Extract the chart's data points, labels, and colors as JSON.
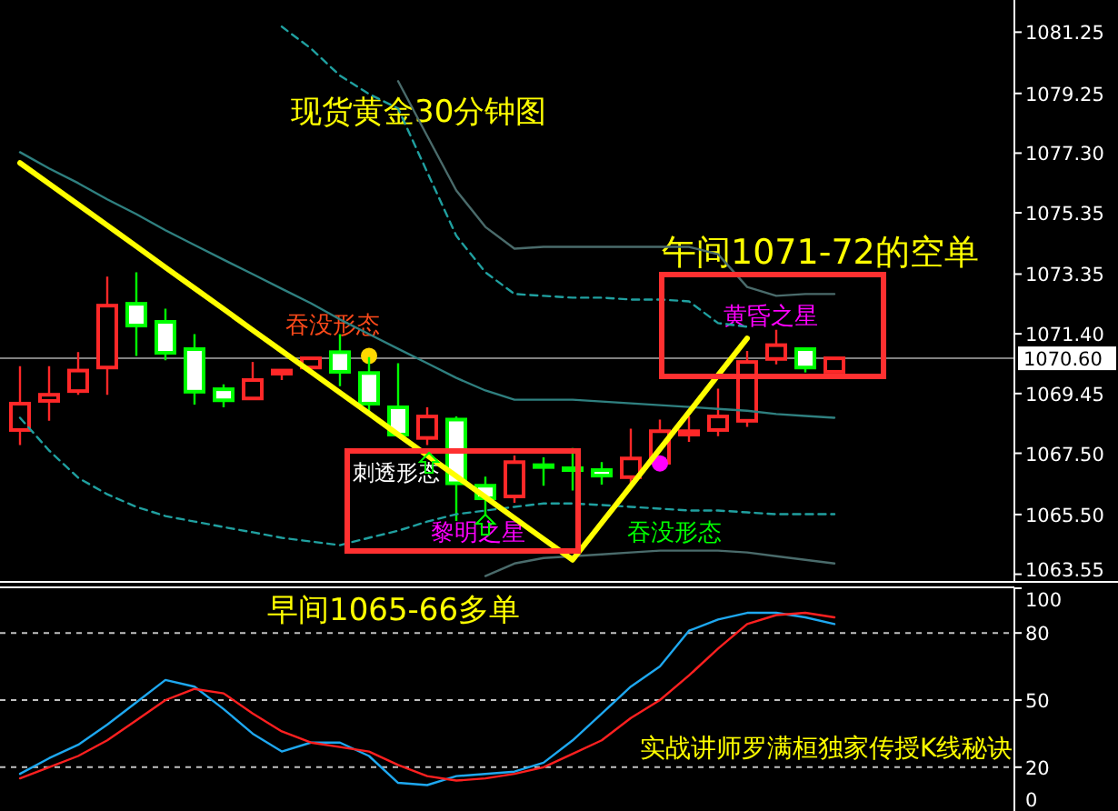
{
  "chart_data": [
    {
      "type": "candlestick",
      "title": "现货黄金30分钟图",
      "categories": [
        null,
        null,
        null,
        null,
        null,
        null,
        null,
        null,
        null,
        null,
        null,
        null,
        null,
        null,
        null,
        null,
        null,
        null,
        null,
        null,
        null,
        null,
        null,
        null,
        null,
        null,
        null,
        null,
        null
      ],
      "ohlc": [
        [
          1068.26,
          1070.34,
          1067.77,
          1069.12
        ],
        [
          1069.21,
          1070.34,
          1068.56,
          1069.41
        ],
        [
          1069.53,
          1070.8,
          1069.41,
          1070.2
        ],
        [
          1070.3,
          1073.27,
          1069.41,
          1072.32
        ],
        [
          1072.38,
          1073.41,
          1070.68,
          1071.67
        ],
        [
          1071.79,
          1072.22,
          1070.54,
          1070.78
        ],
        [
          1070.9,
          1071.39,
          1069.09,
          1069.51
        ],
        [
          1069.59,
          1069.75,
          1069.0,
          1069.23
        ],
        [
          1069.29,
          1070.48,
          1069.29,
          1069.89
        ],
        [
          1070.1,
          1070.2,
          1069.89,
          1070.2
        ],
        [
          1070.3,
          1070.6,
          1070.28,
          1070.6
        ],
        [
          1070.8,
          1071.39,
          1069.69,
          1070.16
        ],
        [
          1070.12,
          1070.64,
          1068.85,
          1069.12
        ],
        [
          1069.0,
          1070.44,
          1068.11,
          1068.11
        ],
        [
          1068.0,
          1069.0,
          1067.77,
          1068.7
        ],
        [
          1068.6,
          1068.7,
          1065.29,
          1066.52
        ],
        [
          1066.44,
          1066.74,
          1065.49,
          1066.03
        ],
        [
          1066.09,
          1067.43,
          1065.88,
          1067.21
        ],
        [
          1067.11,
          1067.37,
          1066.44,
          1067.11
        ],
        [
          1067.01,
          1067.67,
          1066.28,
          1067.01
        ],
        [
          1066.95,
          1067.21,
          1066.48,
          1066.77
        ],
        [
          1066.72,
          1068.3,
          1066.44,
          1067.33
        ],
        [
          1067.19,
          1068.6,
          1067.17,
          1068.22
        ],
        [
          1068.11,
          1068.7,
          1067.87,
          1068.22
        ],
        [
          1068.26,
          1069.61,
          1068.06,
          1068.7
        ],
        [
          1068.56,
          1070.84,
          1068.36,
          1070.48
        ],
        [
          1070.58,
          1071.53,
          1070.4,
          1071.03
        ],
        [
          1070.9,
          1070.93,
          1070.14,
          1070.3
        ],
        [
          1070.16,
          1070.64,
          1070.16,
          1070.6
        ]
      ],
      "colors": [
        "#ff2828",
        "#ff2828",
        "#ff2828",
        "#ff2828",
        "#00ff00",
        "#00ff00",
        "#00ff00",
        "#00ff00",
        "#ff2828",
        "#ff2828",
        "#ff2828",
        "#00ff00",
        "#00ff00",
        "#00ff00",
        "#ff2828",
        "#00ff00",
        "#00ff00",
        "#ff2828",
        "#00ff00",
        "#00ff00",
        "#00ff00",
        "#ff2828",
        "#ff2828",
        "#ff2828",
        "#ff2828",
        "#ff2828",
        "#ff2828",
        "#00ff00",
        "#ff2828"
      ],
      "series": [
        {
          "type": "line",
          "color": "#2f8080",
          "line_style": "solid",
          "values": [
            1077.33,
            1076.8,
            1076.32,
            1075.79,
            1075.31,
            1074.78,
            1074.3,
            1073.82,
            1073.35,
            1072.87,
            1072.4,
            1071.87,
            1071.39,
            1070.91,
            1070.44,
            1069.96,
            1069.55,
            1069.25,
            1069.25,
            1069.25,
            1069.19,
            1069.13,
            1069.07,
            1069.01,
            1068.95,
            1068.89,
            1068.78,
            1068.72,
            1068.66
          ]
        },
        {
          "type": "line",
          "color": "#20a0a0",
          "line_style": "dashed",
          "values": [
            null,
            null,
            null,
            null,
            null,
            null,
            null,
            null,
            null,
            1081.43,
            1080.72,
            1079.83,
            1079.23,
            1078.76,
            1076.68,
            1074.6,
            1073.41,
            1072.7,
            1072.64,
            1072.58,
            1072.58,
            1072.52,
            1072.52,
            1072.46,
            1071.75,
            1071.63,
            null,
            null,
            null
          ]
        },
        {
          "type": "line",
          "color": "#4a6b6b",
          "line_style": "solid",
          "values": [
            null,
            null,
            null,
            null,
            null,
            null,
            null,
            null,
            null,
            null,
            null,
            null,
            null,
            1079.65,
            1077.86,
            1076.08,
            1074.89,
            1074.18,
            1074.24,
            1074.24,
            1074.24,
            1074.24,
            1074.24,
            1074.24,
            1074.0,
            1072.93,
            1072.64,
            1072.7,
            1072.7
          ]
        },
        {
          "type": "line",
          "color": "#20a0a0",
          "line_style": "dashed",
          "values": [
            1068.66,
            1067.59,
            1066.7,
            1066.16,
            1065.75,
            1065.45,
            1065.27,
            1065.09,
            1064.92,
            1064.74,
            1064.62,
            1064.5,
            1064.74,
            1064.97,
            1065.27,
            1065.51,
            1065.63,
            1065.75,
            1065.86,
            1065.86,
            1065.81,
            1065.75,
            1065.69,
            1065.63,
            1065.63,
            1065.57,
            1065.51,
            1065.51,
            1065.51
          ]
        },
        {
          "type": "line",
          "color": "#4a6b6b",
          "line_style": "solid",
          "values": [
            null,
            null,
            null,
            null,
            null,
            null,
            null,
            null,
            null,
            null,
            null,
            null,
            null,
            null,
            null,
            null,
            1063.49,
            1063.9,
            1064.08,
            1064.14,
            1064.2,
            1064.26,
            1064.32,
            1064.32,
            1064.32,
            1064.26,
            1064.14,
            1064.02,
            1063.9
          ]
        },
        {
          "type": "line",
          "color": "#ffff00",
          "line_style": "solid",
          "values": [
            1076.98,
            1076.3,
            1075.62,
            1074.94,
            1074.26,
            1073.57,
            1072.89,
            1072.21,
            1071.52,
            1070.84,
            1070.16,
            1069.48,
            1068.8,
            1068.11,
            1067.43,
            1066.75,
            1066.07,
            1065.38,
            1064.7,
            1064.02,
            1065.23,
            1066.43,
            1067.64,
            1068.84,
            1070.05,
            1071.25,
            null,
            null,
            null
          ]
        },
        {
          "type": "scatter",
          "color": "#ffd700",
          "marker": "circle",
          "values": [
            null,
            null,
            null,
            null,
            null,
            null,
            null,
            null,
            null,
            null,
            null,
            null,
            1070.68,
            null,
            null,
            null,
            null,
            null,
            null,
            null,
            null,
            null,
            null,
            null,
            null,
            null,
            null,
            null,
            null
          ]
        },
        {
          "type": "scatter",
          "color": "#ff00ff",
          "marker": "circle",
          "values": [
            null,
            null,
            null,
            null,
            null,
            null,
            null,
            null,
            null,
            null,
            null,
            null,
            null,
            null,
            null,
            null,
            null,
            null,
            null,
            null,
            null,
            null,
            1067.17,
            null,
            null,
            null,
            null,
            null,
            null
          ]
        }
      ],
      "ylim": [
        1063.3,
        1082.3
      ],
      "yticks": [
        1081.25,
        1079.25,
        {
          "value": 1077.3,
          "label": "1077.30"
        },
        1075.35,
        1073.35,
        {
          "value": 1071.4,
          "label": "1071.40"
        },
        1069.45,
        {
          "value": 1067.5,
          "label": "1067.50"
        },
        {
          "value": 1065.5,
          "label": "1065.50"
        },
        1063.55
      ],
      "tick_labels": "y",
      "grid": false,
      "ref_lines": [
        {
          "axis": "y",
          "value": 1070.6,
          "label": "1070.60",
          "color": "#808080"
        }
      ],
      "annotations": [
        "午间1071-72的空单",
        "吞没形态",
        "黄昏之星",
        "刺透形态",
        "黎明之星",
        "吞没形态",
        "早间1065-66多单"
      ]
    },
    {
      "type": "line",
      "categories": [
        null,
        null,
        null,
        null,
        null,
        null,
        null,
        null,
        null,
        null,
        null,
        null,
        null,
        null,
        null,
        null,
        null,
        null,
        null,
        null,
        null,
        null,
        null,
        null,
        null,
        null,
        null,
        null,
        null
      ],
      "series": [
        {
          "color": "#1ea8f0",
          "values": [
            17,
            24,
            30,
            39,
            49,
            59,
            56,
            46,
            35,
            27,
            31,
            31,
            25,
            13,
            12,
            16,
            17,
            18,
            22,
            32,
            44,
            56,
            65,
            81,
            86,
            89,
            89,
            87,
            84
          ]
        },
        {
          "color": "#ff2020",
          "values": [
            15,
            20,
            25,
            32,
            41,
            50,
            55,
            53,
            44,
            36,
            31,
            29,
            27,
            21,
            16,
            14,
            15,
            17,
            20,
            26,
            32,
            42,
            50,
            61,
            73,
            84,
            88,
            89,
            87
          ]
        }
      ],
      "ylim": [
        0,
        100
      ],
      "yticks": [
        0,
        20,
        50,
        80,
        100
      ],
      "grid": "y",
      "tick_labels": "y",
      "annotations": [
        "实战讲师罗满桓独家传授K线秘诀"
      ]
    }
  ]
}
